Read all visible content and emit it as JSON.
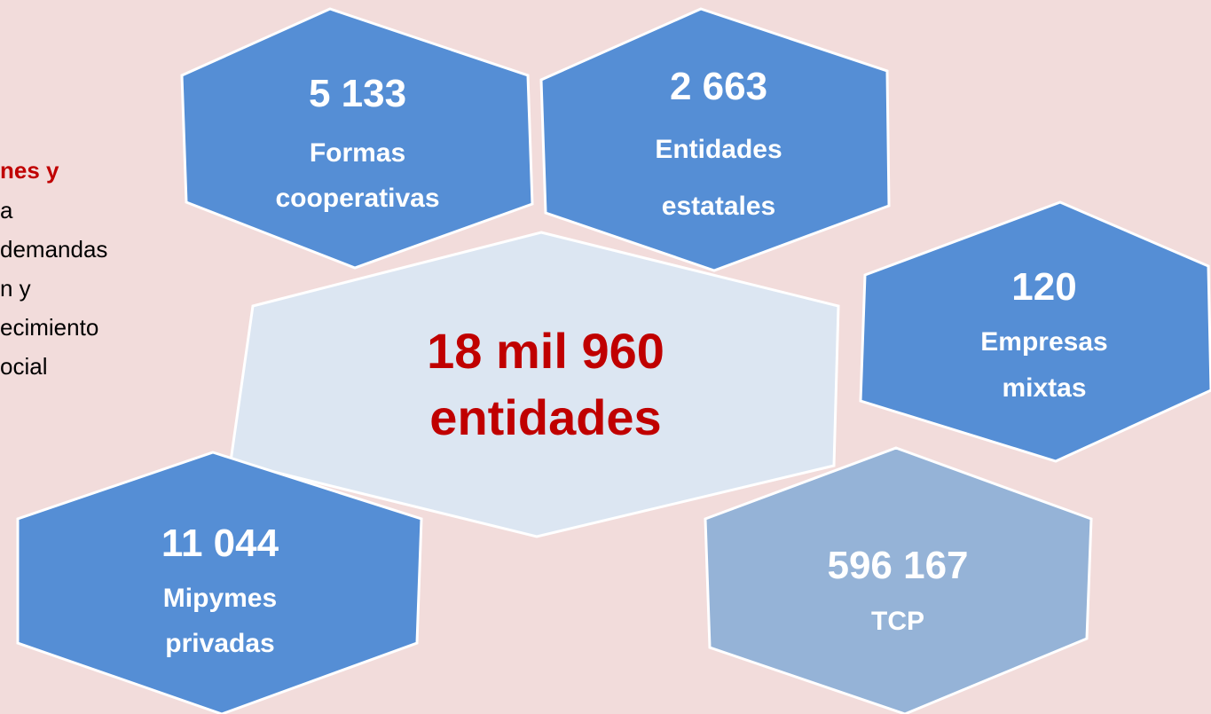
{
  "left_text": {
    "highlight": "nes y",
    "lines": [
      "a",
      "demandas",
      "n y",
      "ecimiento",
      "ocial"
    ]
  },
  "hexagons": [
    {
      "number": "5 133",
      "label_lines": [
        "Formas",
        "cooperativas"
      ]
    },
    {
      "number": "2 663",
      "label_lines": [
        "Entidades",
        "estatales"
      ]
    },
    {
      "number": "18 mil 960",
      "label_lines": [
        "entidades"
      ]
    },
    {
      "number": "120",
      "label_lines": [
        "Empresas",
        "mixtas"
      ]
    },
    {
      "number": "11 044",
      "label_lines": [
        "Mipymes",
        "privadas"
      ]
    },
    {
      "number": "596 167",
      "label_lines": [
        "TCP"
      ]
    }
  ]
}
